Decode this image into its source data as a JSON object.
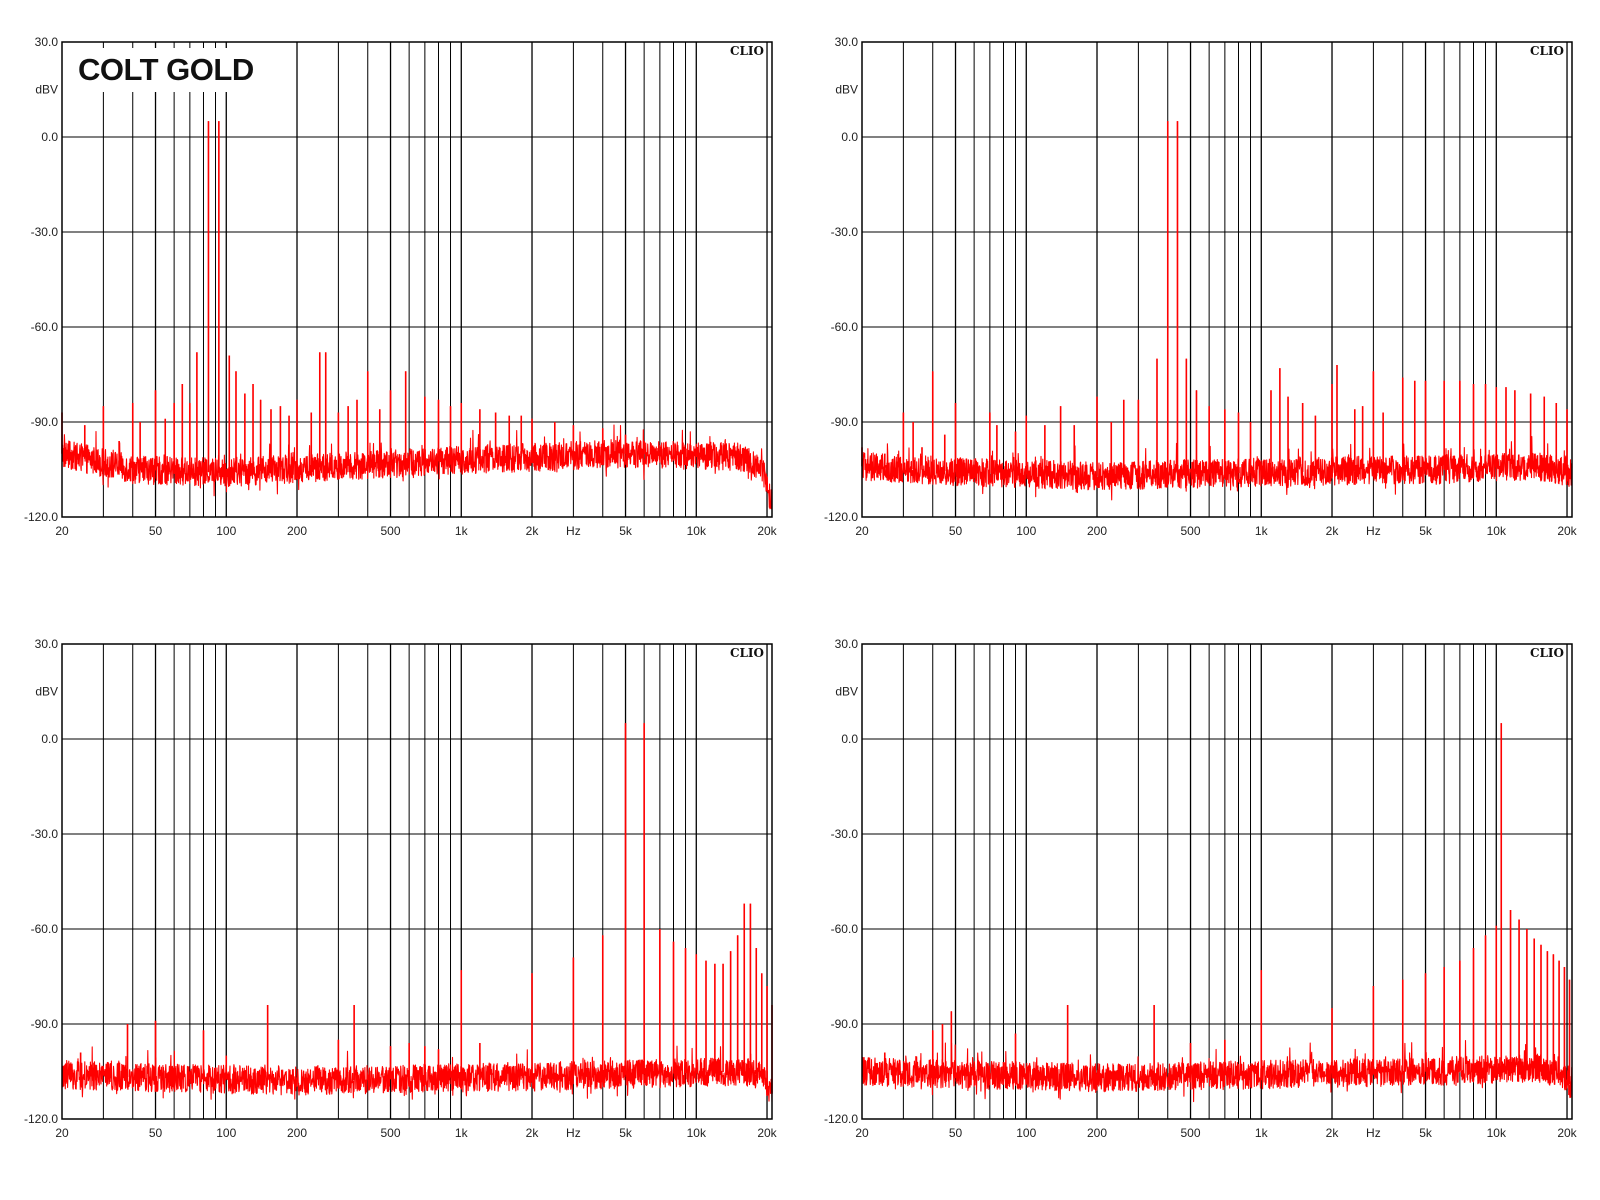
{
  "chart_data": [
    {
      "type": "line",
      "title": "COLT GOLD",
      "brand": "CLIO",
      "xscale": "log",
      "xlim": [
        20,
        21000
      ],
      "ylim": [
        -120,
        30
      ],
      "ylabel": "dBV",
      "y_ticks": [
        "30.0",
        "0.0",
        "-30.0",
        "-60.0",
        "-90.0",
        "-120.0"
      ],
      "x_ticks": [
        "20",
        "50",
        "100",
        "200",
        "500",
        "1k",
        "2k",
        "Hz",
        "5k",
        "10k",
        "20k"
      ],
      "grid": true,
      "line_color": "#ff0000",
      "noise_floor": [
        [
          20,
          -100
        ],
        [
          40,
          -105
        ],
        [
          100,
          -106
        ],
        [
          300,
          -104
        ],
        [
          1000,
          -102
        ],
        [
          5000,
          -100
        ],
        [
          15000,
          -101
        ],
        [
          19000,
          -104
        ],
        [
          21000,
          -116
        ]
      ],
      "peaks": [
        [
          20,
          -87
        ],
        [
          25,
          -91
        ],
        [
          30,
          -85
        ],
        [
          35,
          -96
        ],
        [
          40,
          -84
        ],
        [
          43,
          -90
        ],
        [
          50,
          -80
        ],
        [
          55,
          -89
        ],
        [
          60,
          -84
        ],
        [
          65,
          -78
        ],
        [
          70,
          -84
        ],
        [
          75,
          -68
        ],
        [
          84,
          5
        ],
        [
          93,
          5
        ],
        [
          103,
          -69
        ],
        [
          110,
          -74
        ],
        [
          120,
          -81
        ],
        [
          130,
          -78
        ],
        [
          140,
          -83
        ],
        [
          155,
          -86
        ],
        [
          170,
          -85
        ],
        [
          185,
          -88
        ],
        [
          200,
          -83
        ],
        [
          230,
          -87
        ],
        [
          250,
          -68
        ],
        [
          265,
          -68
        ],
        [
          300,
          -87
        ],
        [
          330,
          -85
        ],
        [
          360,
          -83
        ],
        [
          400,
          -74
        ],
        [
          450,
          -86
        ],
        [
          500,
          -80
        ],
        [
          580,
          -74
        ],
        [
          700,
          -82
        ],
        [
          800,
          -83
        ],
        [
          900,
          -85
        ],
        [
          1000,
          -84
        ],
        [
          1200,
          -86
        ],
        [
          1400,
          -87
        ],
        [
          1600,
          -88
        ],
        [
          1800,
          -88
        ],
        [
          2000,
          -89
        ],
        [
          2500,
          -90
        ],
        [
          3000,
          -91
        ],
        [
          4000,
          -92
        ],
        [
          5000,
          -94
        ],
        [
          6000,
          -96
        ],
        [
          8000,
          -97
        ],
        [
          10000,
          -99
        ],
        [
          13000,
          -100
        ]
      ]
    },
    {
      "type": "line",
      "title": "",
      "brand": "CLIO",
      "xscale": "log",
      "xlim": [
        20,
        21000
      ],
      "ylim": [
        -120,
        30
      ],
      "ylabel": "dBV",
      "y_ticks": [
        "30.0",
        "0.0",
        "-30.0",
        "-60.0",
        "-90.0",
        "-120.0"
      ],
      "x_ticks": [
        "20",
        "50",
        "100",
        "200",
        "500",
        "1k",
        "2k",
        "Hz",
        "5k",
        "10k",
        "20k"
      ],
      "grid": true,
      "line_color": "#ff0000",
      "noise_floor": [
        [
          20,
          -104
        ],
        [
          60,
          -106
        ],
        [
          200,
          -107
        ],
        [
          1000,
          -106
        ],
        [
          5000,
          -105
        ],
        [
          15000,
          -104
        ],
        [
          21000,
          -106
        ]
      ],
      "peaks": [
        [
          20,
          -98
        ],
        [
          25,
          -100
        ],
        [
          30,
          -87
        ],
        [
          33,
          -90
        ],
        [
          36,
          -98
        ],
        [
          40,
          -74
        ],
        [
          45,
          -94
        ],
        [
          50,
          -84
        ],
        [
          70,
          -87
        ],
        [
          75,
          -91
        ],
        [
          90,
          -93
        ],
        [
          100,
          -88
        ],
        [
          120,
          -91
        ],
        [
          140,
          -85
        ],
        [
          160,
          -91
        ],
        [
          200,
          -82
        ],
        [
          230,
          -90
        ],
        [
          260,
          -83
        ],
        [
          300,
          -83
        ],
        [
          360,
          -70
        ],
        [
          400,
          5
        ],
        [
          440,
          5
        ],
        [
          480,
          -70
        ],
        [
          530,
          -80
        ],
        [
          600,
          -85
        ],
        [
          700,
          -86
        ],
        [
          800,
          -87
        ],
        [
          900,
          -90
        ],
        [
          1100,
          -80
        ],
        [
          1200,
          -73
        ],
        [
          1300,
          -82
        ],
        [
          1500,
          -84
        ],
        [
          1700,
          -88
        ],
        [
          2000,
          -78
        ],
        [
          2100,
          -72
        ],
        [
          2500,
          -86
        ],
        [
          2700,
          -85
        ],
        [
          3000,
          -74
        ],
        [
          3300,
          -87
        ],
        [
          4000,
          -76
        ],
        [
          4500,
          -77
        ],
        [
          5000,
          -77
        ],
        [
          6000,
          -77
        ],
        [
          7000,
          -77
        ],
        [
          8000,
          -78
        ],
        [
          9000,
          -78
        ],
        [
          10000,
          -79
        ],
        [
          11000,
          -79
        ],
        [
          12000,
          -80
        ],
        [
          14000,
          -81
        ],
        [
          16000,
          -82
        ],
        [
          18000,
          -84
        ],
        [
          20000,
          -86
        ]
      ]
    },
    {
      "type": "line",
      "title": "",
      "brand": "CLIO",
      "xscale": "log",
      "xlim": [
        20,
        21000
      ],
      "ylim": [
        -120,
        30
      ],
      "ylabel": "dBV",
      "y_ticks": [
        "30.0",
        "0.0",
        "-30.0",
        "-60.0",
        "-90.0",
        "-120.0"
      ],
      "x_ticks": [
        "20",
        "50",
        "100",
        "200",
        "500",
        "1k",
        "2k",
        "Hz",
        "5k",
        "10k",
        "20k"
      ],
      "grid": true,
      "line_color": "#ff0000",
      "noise_floor": [
        [
          20,
          -106
        ],
        [
          50,
          -107
        ],
        [
          200,
          -108
        ],
        [
          1000,
          -107
        ],
        [
          5000,
          -106
        ],
        [
          15000,
          -105
        ],
        [
          19000,
          -106
        ],
        [
          21000,
          -112
        ]
      ],
      "peaks": [
        [
          24,
          -99
        ],
        [
          28,
          -104
        ],
        [
          38,
          -90
        ],
        [
          50,
          -89
        ],
        [
          80,
          -92
        ],
        [
          100,
          -100
        ],
        [
          150,
          -84
        ],
        [
          300,
          -95
        ],
        [
          350,
          -84
        ],
        [
          500,
          -97
        ],
        [
          600,
          -96
        ],
        [
          700,
          -97
        ],
        [
          800,
          -98
        ],
        [
          1000,
          -73
        ],
        [
          1200,
          -96
        ],
        [
          2000,
          -74
        ],
        [
          3000,
          -69
        ],
        [
          4000,
          -62
        ],
        [
          5000,
          5
        ],
        [
          6000,
          5
        ],
        [
          7000,
          -60
        ],
        [
          8000,
          -64
        ],
        [
          9000,
          -66
        ],
        [
          10000,
          -68
        ],
        [
          11000,
          -70
        ],
        [
          12000,
          -71
        ],
        [
          13000,
          -71
        ],
        [
          14000,
          -67
        ],
        [
          15000,
          -62
        ],
        [
          16000,
          -52
        ],
        [
          17000,
          -52
        ],
        [
          18000,
          -66
        ],
        [
          19000,
          -74
        ],
        [
          20000,
          -78
        ],
        [
          21000,
          -84
        ]
      ]
    },
    {
      "type": "line",
      "title": "",
      "brand": "CLIO",
      "xscale": "log",
      "xlim": [
        20,
        21000
      ],
      "ylim": [
        -120,
        30
      ],
      "ylabel": "dBV",
      "y_ticks": [
        "30.0",
        "0.0",
        "-30.0",
        "-60.0",
        "-90.0",
        "-120.0"
      ],
      "x_ticks": [
        "20",
        "50",
        "100",
        "200",
        "500",
        "1k",
        "2k",
        "Hz",
        "5k",
        "10k",
        "20k"
      ],
      "grid": true,
      "line_color": "#ff0000",
      "noise_floor": [
        [
          20,
          -105
        ],
        [
          60,
          -106
        ],
        [
          200,
          -107
        ],
        [
          1000,
          -106
        ],
        [
          5000,
          -105
        ],
        [
          15000,
          -104
        ],
        [
          19000,
          -106
        ],
        [
          21000,
          -110
        ]
      ],
      "peaks": [
        [
          25,
          -99
        ],
        [
          40,
          -92
        ],
        [
          44,
          -90
        ],
        [
          48,
          -86
        ],
        [
          80,
          -102
        ],
        [
          90,
          -93
        ],
        [
          150,
          -84
        ],
        [
          350,
          -84
        ],
        [
          500,
          -96
        ],
        [
          700,
          -95
        ],
        [
          1000,
          -73
        ],
        [
          2000,
          -85
        ],
        [
          3000,
          -78
        ],
        [
          4000,
          -76
        ],
        [
          5000,
          -74
        ],
        [
          6000,
          -72
        ],
        [
          7000,
          -70
        ],
        [
          8000,
          -66
        ],
        [
          9000,
          -62
        ],
        [
          10000,
          -59
        ],
        [
          10500,
          5
        ],
        [
          11500,
          -54
        ],
        [
          12500,
          -57
        ],
        [
          13500,
          -60
        ],
        [
          14500,
          -63
        ],
        [
          15500,
          -65
        ],
        [
          16500,
          -67
        ],
        [
          17500,
          -68
        ],
        [
          18500,
          -70
        ],
        [
          19500,
          -72
        ],
        [
          20500,
          -76
        ]
      ]
    }
  ]
}
